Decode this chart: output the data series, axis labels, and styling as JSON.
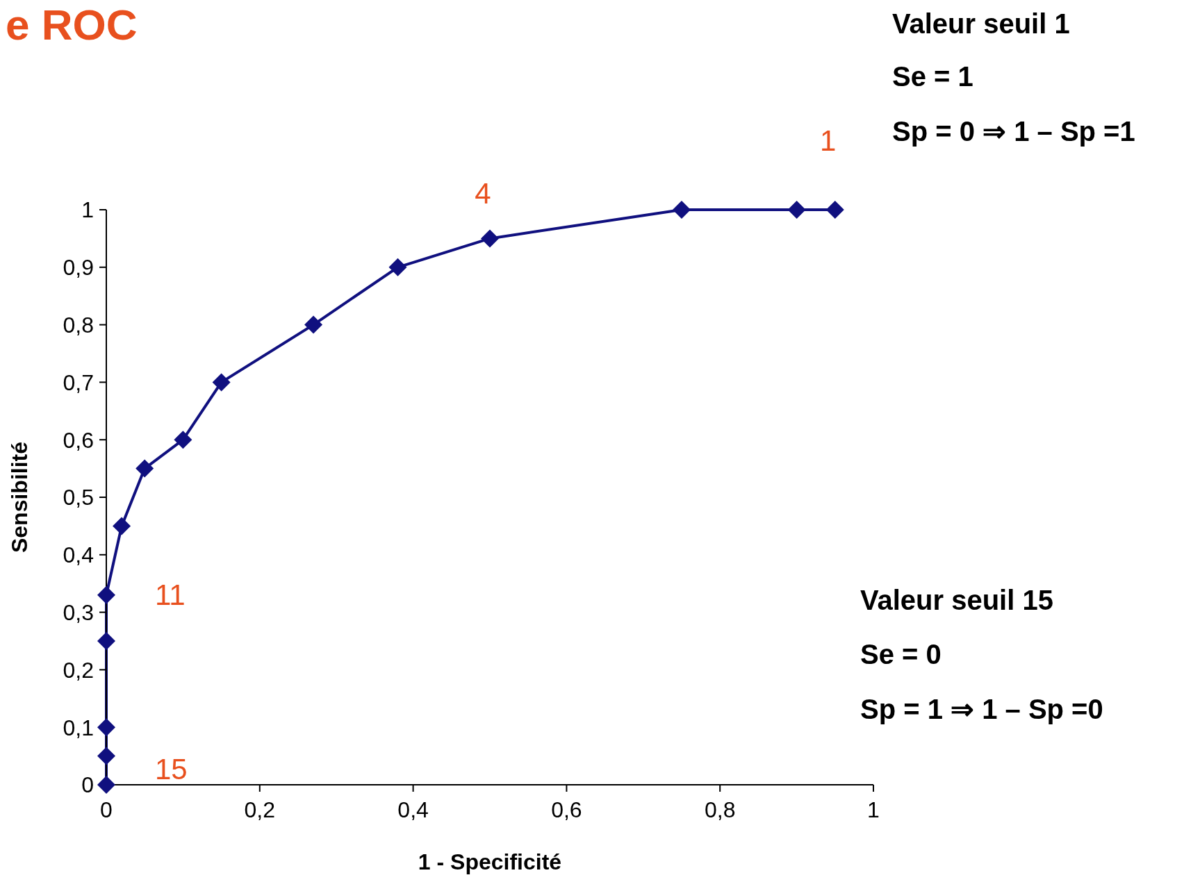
{
  "chart_data": {
    "type": "line",
    "title": "e ROC",
    "xlabel": "1 - Specificité",
    "ylabel": "Sensibilité",
    "x": [
      0,
      0,
      0,
      0,
      0,
      0.02,
      0.05,
      0.1,
      0.15,
      0.27,
      0.38,
      0.5,
      0.75,
      0.9,
      0.95
    ],
    "series": [
      {
        "color": "#10107f",
        "values": [
          0,
          0.05,
          0.1,
          0.25,
          0.33,
          0.45,
          0.55,
          0.6,
          0.7,
          0.8,
          0.9,
          0.95,
          1,
          1,
          1
        ]
      }
    ],
    "xlim": [
      0,
      1
    ],
    "ylim": [
      0,
      1
    ],
    "xticks": [
      0,
      {
        "value": 0.2,
        "label": "0,2"
      },
      {
        "value": 0.4,
        "label": "0,4"
      },
      {
        "value": 0.6,
        "label": "0,6"
      },
      {
        "value": 0.8,
        "label": "0,8"
      },
      1
    ],
    "yticks": [
      0,
      {
        "value": 0.1,
        "label": "0,1"
      },
      {
        "value": 0.2,
        "label": "0,2"
      },
      {
        "value": 0.3,
        "label": "0,3"
      },
      {
        "value": 0.4,
        "label": "0,4"
      },
      {
        "value": 0.5,
        "label": "0,5"
      },
      {
        "value": 0.6,
        "label": "0,6"
      },
      {
        "value": 0.7,
        "label": "0,7"
      },
      {
        "value": 0.8,
        "label": "0,8"
      },
      {
        "value": 0.9,
        "label": "0,9"
      },
      1
    ],
    "marker": "diamond",
    "grid": false,
    "legend": false,
    "annotations": [
      {
        "text": "1",
        "x": 0.95,
        "y": 1
      },
      {
        "text": "4",
        "x": 0.5,
        "y": 0.95
      },
      {
        "text": "11",
        "x": 0,
        "y": 0.33
      },
      {
        "text": "15",
        "x": 0,
        "y": 0
      },
      "Valeur seuil 1",
      "Se = 1",
      "Sp = 0 ⇒ 1 – Sp =1",
      "Valeur seuil 15",
      "Se = 0",
      "Sp = 1 ⇒ 1 – Sp =0"
    ]
  }
}
